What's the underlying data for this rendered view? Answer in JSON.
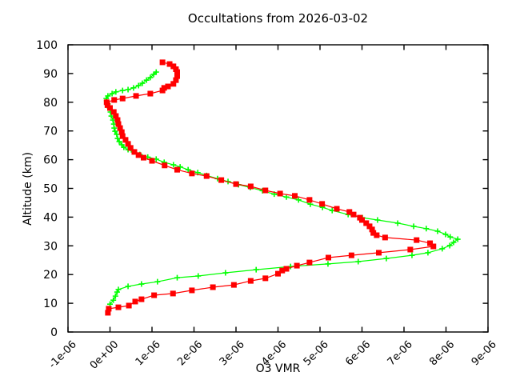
{
  "window": {
    "background": "#ffffff"
  },
  "chart_data": {
    "type": "line",
    "title": "Occultations from 2026-03-02",
    "xlabel": "O3 VMR",
    "ylabel": "Altitude (km)",
    "x_unit": "1e-06",
    "xlim": [
      -1,
      9
    ],
    "ylim": [
      0,
      100
    ],
    "grid": false,
    "legend": "none",
    "tick_style": "inward, mirrored on top and right borders",
    "axis_color": "#000000",
    "xticks": {
      "values": [
        -1,
        0,
        1,
        2,
        3,
        4,
        5,
        6,
        7,
        8,
        9
      ],
      "labels": [
        "-1e-06",
        "0e+00",
        "1e-06",
        "2e-06",
        "3e-06",
        "4e-06",
        "5e-06",
        "6e-06",
        "7e-06",
        "8e-06",
        "9e-06"
      ],
      "rotation_deg": -45
    },
    "yticks": {
      "values": [
        0,
        10,
        20,
        30,
        40,
        50,
        60,
        70,
        80,
        90,
        100
      ],
      "labels": [
        "0",
        "10",
        "20",
        "30",
        "40",
        "50",
        "60",
        "70",
        "80",
        "90",
        "100"
      ]
    },
    "series": [
      {
        "name": "green-plus-profile",
        "color": "#00ff00",
        "marker": "plus",
        "points_x_unit": "1e-06",
        "points": [
          [
            0.0,
            9.7
          ],
          [
            0.08,
            11.1
          ],
          [
            0.13,
            12.5
          ],
          [
            0.17,
            13.9
          ],
          [
            0.2,
            14.8
          ],
          [
            0.43,
            15.9
          ],
          [
            0.75,
            16.7
          ],
          [
            1.13,
            17.5
          ],
          [
            1.6,
            18.9
          ],
          [
            2.1,
            19.5
          ],
          [
            2.75,
            20.6
          ],
          [
            3.48,
            21.7
          ],
          [
            4.3,
            22.8
          ],
          [
            5.19,
            23.7
          ],
          [
            5.91,
            24.5
          ],
          [
            6.58,
            25.6
          ],
          [
            7.19,
            26.7
          ],
          [
            7.57,
            27.6
          ],
          [
            7.91,
            29.0
          ],
          [
            8.09,
            30.1
          ],
          [
            8.18,
            31.2
          ],
          [
            8.28,
            32.3
          ],
          [
            8.1,
            33.1
          ],
          [
            7.99,
            34.0
          ],
          [
            7.8,
            35.1
          ],
          [
            7.53,
            36.0
          ],
          [
            7.23,
            36.8
          ],
          [
            6.85,
            37.9
          ],
          [
            6.37,
            39.0
          ],
          [
            6.01,
            39.8
          ],
          [
            5.67,
            40.9
          ],
          [
            5.29,
            42.3
          ],
          [
            5.06,
            43.4
          ],
          [
            4.77,
            44.5
          ],
          [
            4.49,
            46.0
          ],
          [
            4.2,
            47.0
          ],
          [
            3.91,
            48.0
          ],
          [
            3.63,
            49.2
          ],
          [
            3.34,
            50.3
          ],
          [
            3.06,
            51.3
          ],
          [
            2.81,
            52.4
          ],
          [
            2.56,
            53.4
          ],
          [
            2.3,
            54.5
          ],
          [
            2.09,
            55.5
          ],
          [
            1.86,
            56.5
          ],
          [
            1.67,
            57.5
          ],
          [
            1.51,
            58.2
          ],
          [
            1.29,
            59.1
          ],
          [
            1.1,
            60.2
          ],
          [
            0.9,
            60.9
          ],
          [
            0.71,
            61.8
          ],
          [
            0.56,
            62.7
          ],
          [
            0.43,
            63.5
          ],
          [
            0.33,
            64.3
          ],
          [
            0.28,
            65.2
          ],
          [
            0.22,
            66.3
          ],
          [
            0.18,
            67.4
          ],
          [
            0.16,
            68.8
          ],
          [
            0.12,
            69.9
          ],
          [
            0.1,
            71.0
          ],
          [
            0.09,
            72.4
          ],
          [
            0.07,
            73.8
          ],
          [
            0.03,
            75.2
          ],
          [
            0.01,
            76.6
          ],
          [
            -0.01,
            78.0
          ],
          [
            -0.05,
            79.4
          ],
          [
            -0.08,
            80.5
          ],
          [
            -0.09,
            81.3
          ],
          [
            -0.05,
            82.2
          ],
          [
            0.05,
            83.0
          ],
          [
            0.14,
            83.6
          ],
          [
            0.3,
            84.1
          ],
          [
            0.43,
            84.4
          ],
          [
            0.56,
            85.0
          ],
          [
            0.68,
            85.8
          ],
          [
            0.77,
            86.6
          ],
          [
            0.87,
            87.7
          ],
          [
            0.96,
            88.6
          ],
          [
            1.04,
            89.7
          ],
          [
            1.1,
            90.5
          ]
        ]
      },
      {
        "name": "red-square-profile",
        "color": "#ff0000",
        "marker": "filled-square",
        "points_x_unit": "1e-06",
        "points": [
          [
            -0.05,
            6.7
          ],
          [
            -0.03,
            8.1
          ],
          [
            0.2,
            8.6
          ],
          [
            0.45,
            9.2
          ],
          [
            0.6,
            10.6
          ],
          [
            0.75,
            11.4
          ],
          [
            1.05,
            12.8
          ],
          [
            1.5,
            13.4
          ],
          [
            1.95,
            14.5
          ],
          [
            2.45,
            15.6
          ],
          [
            2.95,
            16.4
          ],
          [
            3.35,
            17.8
          ],
          [
            3.7,
            18.7
          ],
          [
            4.0,
            20.3
          ],
          [
            4.1,
            21.4
          ],
          [
            4.2,
            22.0
          ],
          [
            4.45,
            23.1
          ],
          [
            4.75,
            24.2
          ],
          [
            5.2,
            25.9
          ],
          [
            5.75,
            26.7
          ],
          [
            6.4,
            27.6
          ],
          [
            7.15,
            28.7
          ],
          [
            7.7,
            29.8
          ],
          [
            7.62,
            30.9
          ],
          [
            7.3,
            32.0
          ],
          [
            6.55,
            32.9
          ],
          [
            6.35,
            33.7
          ],
          [
            6.27,
            34.5
          ],
          [
            6.24,
            35.7
          ],
          [
            6.18,
            36.8
          ],
          [
            6.1,
            37.9
          ],
          [
            6.0,
            39.0
          ],
          [
            5.95,
            39.8
          ],
          [
            5.8,
            40.9
          ],
          [
            5.7,
            41.8
          ],
          [
            5.4,
            42.9
          ],
          [
            5.05,
            44.6
          ],
          [
            4.75,
            46.0
          ],
          [
            4.4,
            47.4
          ],
          [
            4.05,
            48.2
          ],
          [
            3.7,
            49.3
          ],
          [
            3.35,
            50.7
          ],
          [
            3.0,
            51.5
          ],
          [
            2.65,
            52.9
          ],
          [
            2.3,
            54.3
          ],
          [
            1.95,
            55.2
          ],
          [
            1.6,
            56.5
          ],
          [
            1.3,
            58.0
          ],
          [
            1.0,
            59.6
          ],
          [
            0.8,
            60.7
          ],
          [
            0.68,
            61.6
          ],
          [
            0.58,
            62.7
          ],
          [
            0.49,
            64.1
          ],
          [
            0.43,
            65.5
          ],
          [
            0.37,
            66.9
          ],
          [
            0.3,
            68.2
          ],
          [
            0.28,
            69.6
          ],
          [
            0.24,
            71.0
          ],
          [
            0.2,
            72.4
          ],
          [
            0.18,
            73.8
          ],
          [
            0.14,
            75.2
          ],
          [
            0.09,
            76.6
          ],
          [
            0.0,
            78.0
          ],
          [
            -0.06,
            79.0
          ],
          [
            -0.08,
            80.0
          ],
          [
            0.1,
            80.8
          ],
          [
            0.3,
            81.3
          ],
          [
            0.62,
            82.2
          ],
          [
            0.96,
            83.0
          ],
          [
            1.25,
            84.1
          ],
          [
            1.29,
            85.0
          ],
          [
            1.38,
            85.5
          ],
          [
            1.51,
            86.4
          ],
          [
            1.57,
            87.7
          ],
          [
            1.6,
            89.1
          ],
          [
            1.6,
            90.5
          ],
          [
            1.57,
            91.5
          ],
          [
            1.51,
            92.5
          ],
          [
            1.42,
            93.3
          ],
          [
            1.25,
            93.9
          ]
        ]
      }
    ]
  }
}
